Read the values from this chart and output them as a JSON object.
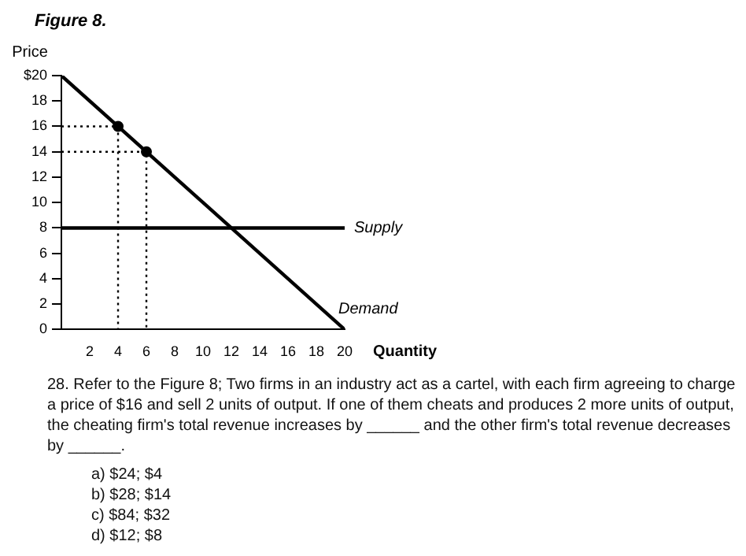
{
  "chart_data": {
    "type": "line",
    "title": "Figure 8.",
    "ylabel": "Price",
    "xlabel": "Quantity",
    "xlim": [
      0,
      20
    ],
    "xticks": [
      2,
      4,
      6,
      8,
      10,
      12,
      14,
      16,
      18,
      20
    ],
    "ylim": [
      0,
      20
    ],
    "yticks": [
      0,
      2,
      4,
      6,
      8,
      10,
      12,
      14,
      16,
      {
        "value": 18,
        "label": "18"
      },
      {
        "value": 20,
        "label": "$20"
      }
    ],
    "grid": false,
    "legend": false,
    "marker": "none",
    "series": [
      {
        "name": "Demand",
        "color": "#000000",
        "x": [
          0,
          20
        ],
        "values": [
          20,
          0
        ]
      },
      {
        "name": "Supply",
        "color": "#000000",
        "x": [
          0,
          20
        ],
        "values": [
          8,
          8
        ]
      },
      {
        "color": "#000000",
        "line_style": "dotted",
        "x": [
          0,
          4,
          4
        ],
        "values": [
          16,
          16,
          0
        ]
      },
      {
        "color": "#000000",
        "line_style": "dotted",
        "x": [
          0,
          6,
          6
        ],
        "values": [
          14,
          14,
          0
        ]
      },
      {
        "type": "scatter",
        "color": "#000000",
        "marker": "circle",
        "x": [
          4,
          6
        ],
        "values": [
          16,
          14
        ]
      }
    ],
    "annotations": [
      "28. Refer to the Figure 8; Two firms in an industry act as a cartel, with each firm agreeing to charge a price of $16 and sell 2 units of output. If one of them cheats and produces 2 more units of output, the cheating firm's total revenue increases by ______ and the other firm's total revenue decreases by ______.",
      "a)  $24; $4",
      "b)  $28; $14",
      "c)  $84; $32",
      "d)  $12; $8"
    ]
  }
}
